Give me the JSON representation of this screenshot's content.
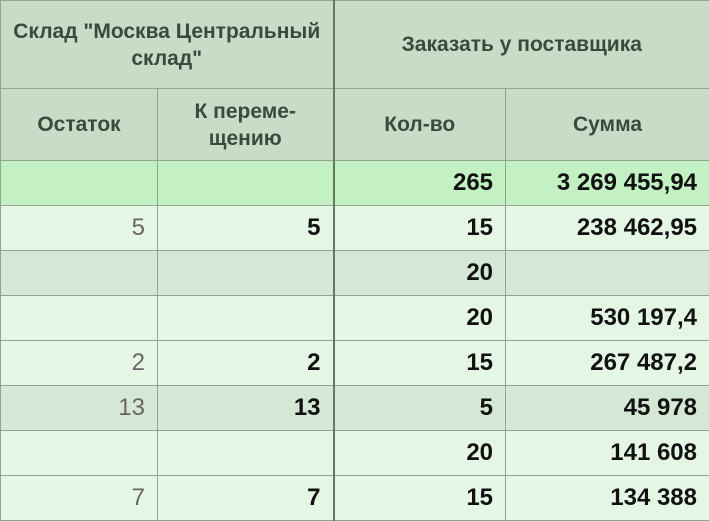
{
  "header": {
    "warehouse_title": "Склад \"Москва Центральный склад\"",
    "order_title": "Заказать у поставщика",
    "columns": {
      "stock": "Остаток",
      "to_transfer": "К переме-щению",
      "qty": "Кол-во",
      "sum": "Сумма"
    }
  },
  "rows": [
    {
      "stock": "",
      "to_transfer": "",
      "qty": "265",
      "sum": "3 269 455,94",
      "style": "total"
    },
    {
      "stock": "5",
      "to_transfer": "5",
      "qty": "15",
      "sum": "238 462,95",
      "style": "light"
    },
    {
      "stock": "",
      "to_transfer": "",
      "qty": "20",
      "sum": "",
      "style": "dim"
    },
    {
      "stock": "",
      "to_transfer": "",
      "qty": "20",
      "sum": "530 197,4",
      "style": "light"
    },
    {
      "stock": "2",
      "to_transfer": "2",
      "qty": "15",
      "sum": "267 487,2",
      "style": "light"
    },
    {
      "stock": "13",
      "to_transfer": "13",
      "qty": "5",
      "sum": "45 978",
      "style": "dim"
    },
    {
      "stock": "",
      "to_transfer": "",
      "qty": "20",
      "sum": "141 608",
      "style": "light"
    },
    {
      "stock": "7",
      "to_transfer": "7",
      "qty": "15",
      "sum": "134 388",
      "style": "light"
    }
  ]
}
